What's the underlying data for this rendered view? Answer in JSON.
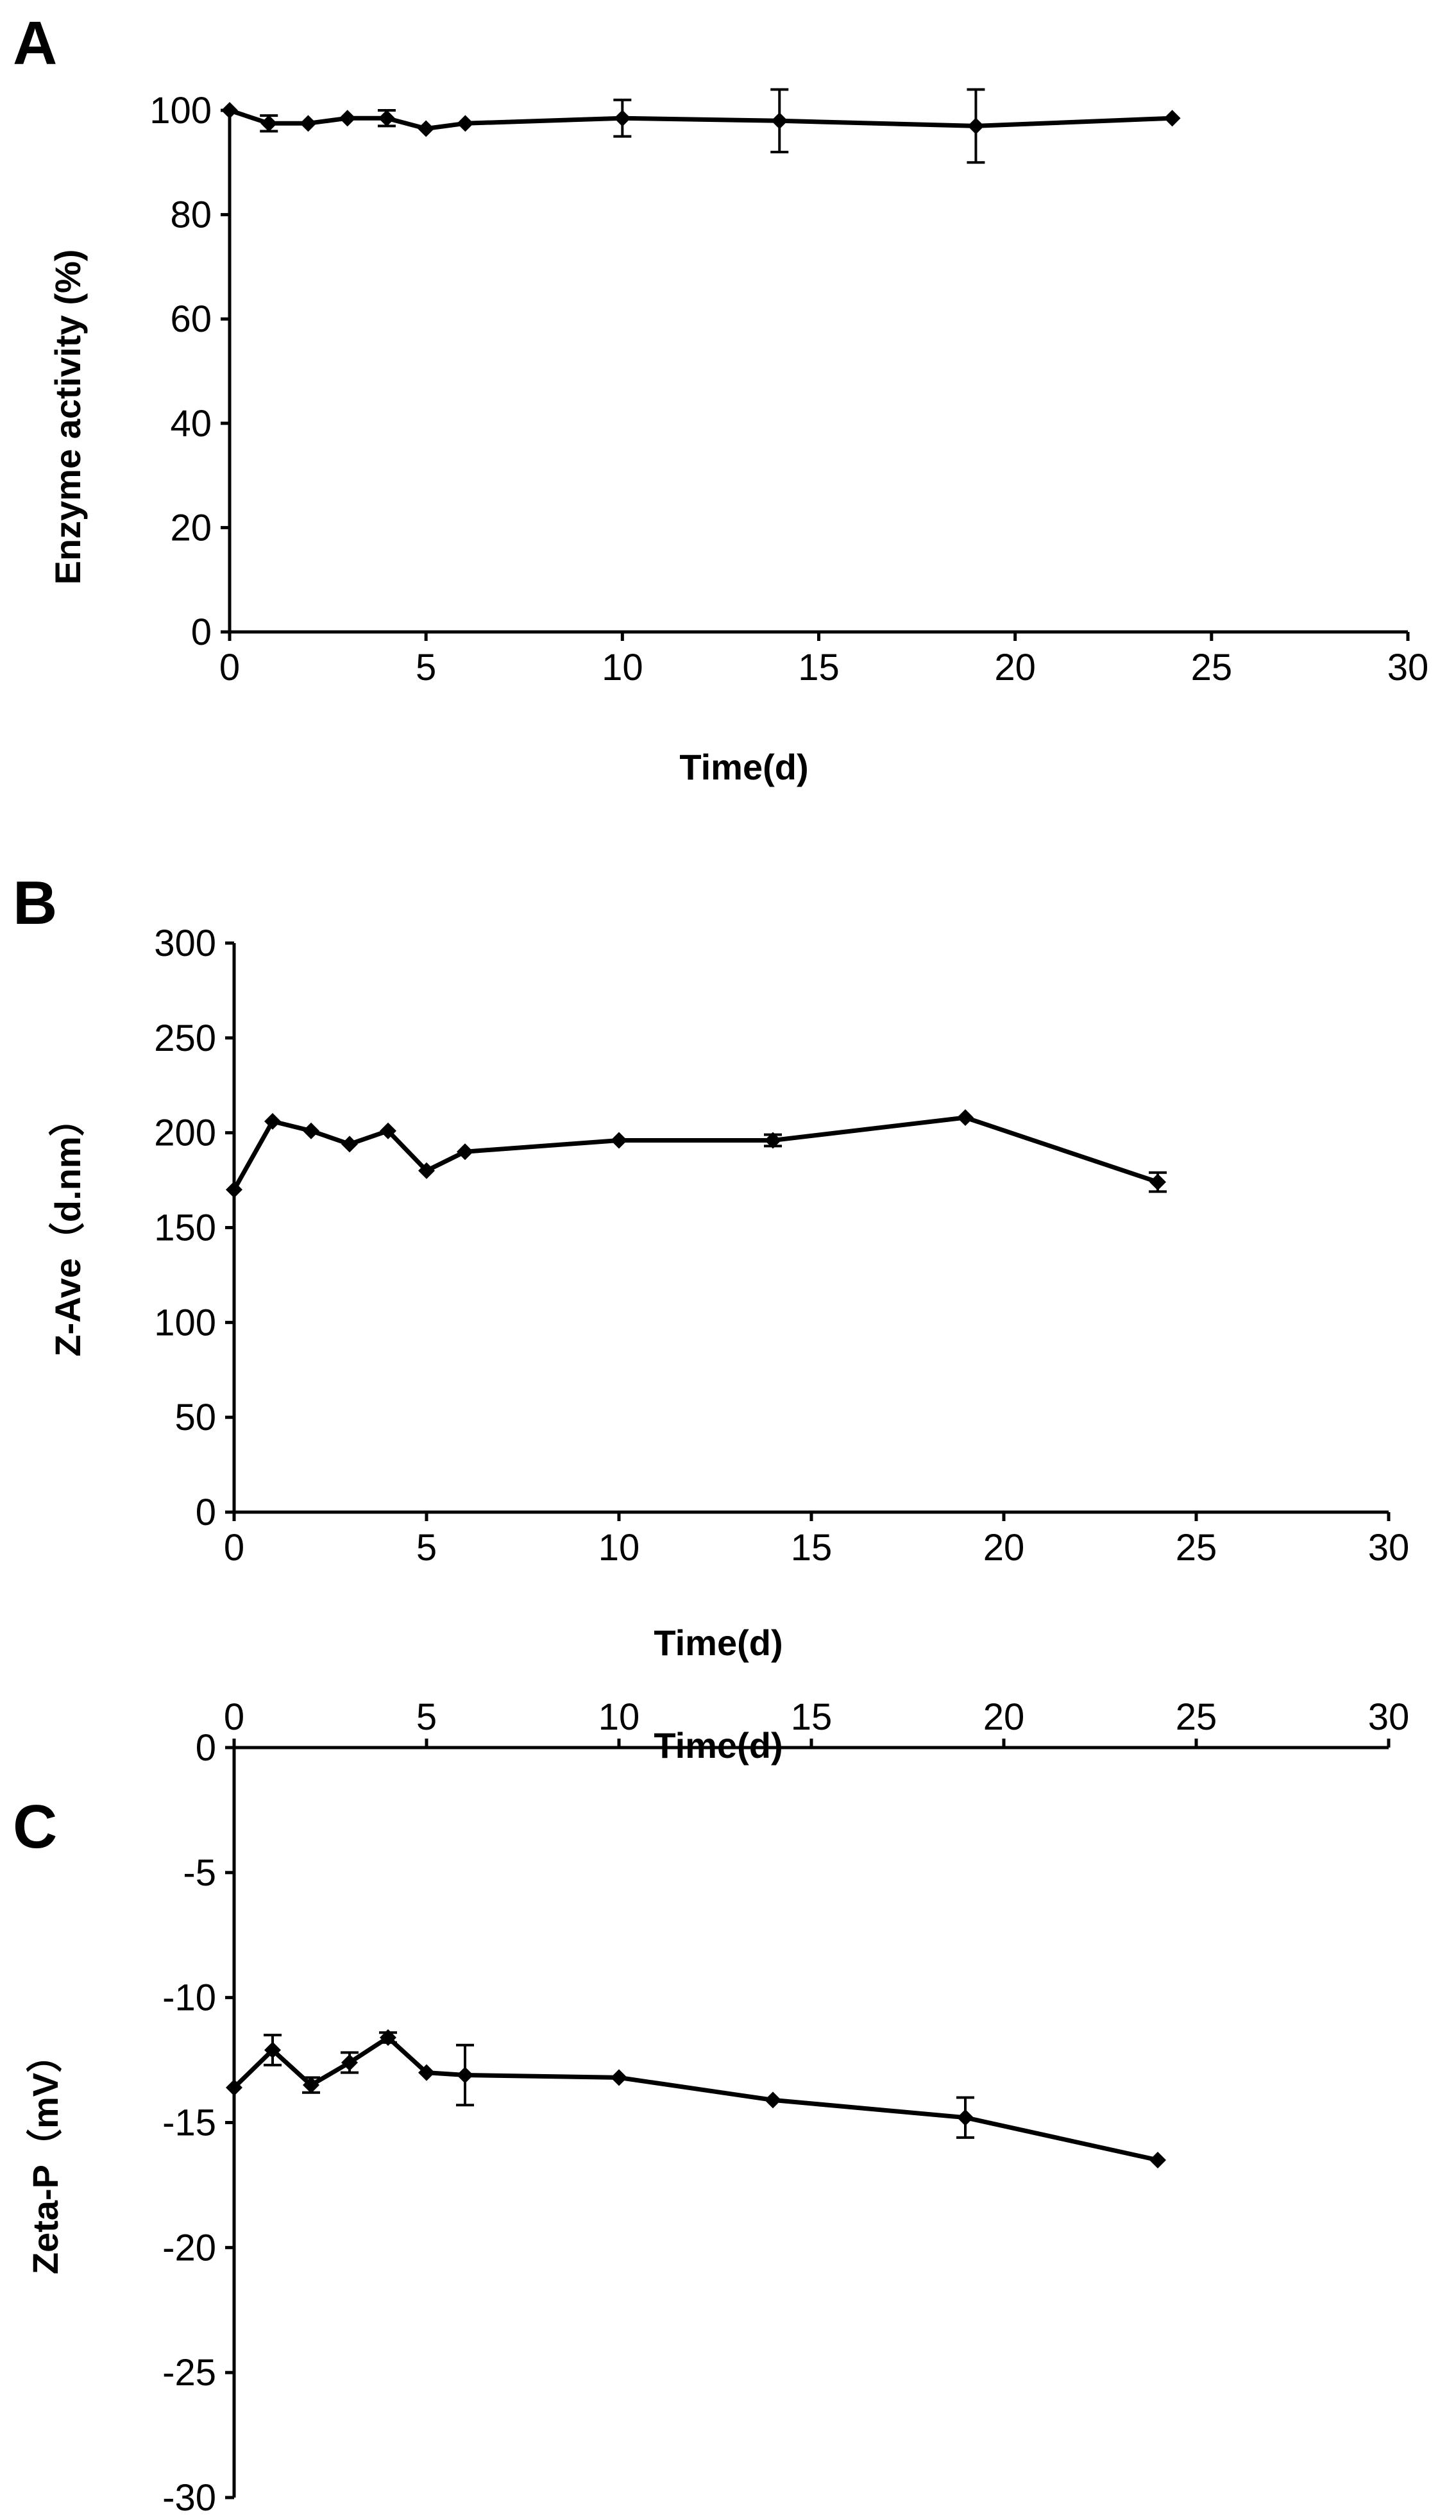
{
  "chart_data": [
    {
      "panel": "A",
      "type": "line",
      "xlabel": "Time(d)",
      "ylabel": "Enzyme activity (%)",
      "xlim": [
        0,
        30
      ],
      "ylim": [
        0,
        100
      ],
      "xticks": [
        "0",
        "5",
        "10",
        "15",
        "20",
        "25",
        "30"
      ],
      "yticks": [
        "0",
        "20",
        "40",
        "60",
        "80",
        "100"
      ],
      "x_axis_position": "bottom",
      "series": [
        {
          "name": "Enzyme activity",
          "x": [
            0,
            1,
            2,
            3,
            4,
            5,
            6,
            10,
            14,
            19,
            24
          ],
          "y": [
            100,
            97.5,
            97.5,
            98.5,
            98.5,
            96.5,
            97.5,
            98.5,
            98,
            97,
            98.5
          ],
          "err": [
            0,
            1.5,
            0,
            0,
            1.5,
            0,
            0,
            3.5,
            6,
            7,
            0
          ]
        }
      ]
    },
    {
      "panel": "B",
      "type": "line",
      "xlabel": "Time(d)",
      "ylabel": "Z-Ave（d.nm）",
      "xlim": [
        0,
        30
      ],
      "ylim": [
        0,
        300
      ],
      "xticks": [
        "0",
        "5",
        "10",
        "15",
        "20",
        "25",
        "30"
      ],
      "yticks": [
        "0",
        "50",
        "100",
        "150",
        "200",
        "250",
        "300"
      ],
      "x_axis_position": "bottom",
      "series": [
        {
          "name": "Z-Ave",
          "x": [
            0,
            1,
            2,
            3,
            4,
            5,
            6,
            10,
            14,
            19,
            24
          ],
          "y": [
            170,
            206,
            201,
            194,
            201,
            180,
            190,
            196,
            196,
            208,
            174
          ],
          "err": [
            0,
            0,
            0,
            0,
            0,
            0,
            0,
            0,
            3,
            0,
            5
          ]
        }
      ]
    },
    {
      "panel": "C",
      "type": "line",
      "xlabel": "Time(d)",
      "ylabel": "Zeta-P（mV）",
      "xlim": [
        0,
        30
      ],
      "ylim": [
        -30,
        0
      ],
      "xticks": [
        "0",
        "5",
        "10",
        "15",
        "20",
        "25",
        "30"
      ],
      "yticks": [
        "-30",
        "-25",
        "-20",
        "-15",
        "-10",
        "-5",
        "0"
      ],
      "x_axis_position": "top",
      "series": [
        {
          "name": "Zeta-P",
          "x": [
            0,
            1,
            2,
            3,
            4,
            5,
            6,
            10,
            14,
            19,
            24
          ],
          "y": [
            -13.6,
            -12.1,
            -13.5,
            -12.6,
            -11.6,
            -13,
            -13.1,
            -13.2,
            -14.1,
            -14.8,
            -16.5
          ],
          "err": [
            0,
            0.6,
            0.3,
            0.4,
            0.2,
            0,
            1.2,
            0,
            0,
            0.8,
            0
          ]
        }
      ]
    }
  ]
}
